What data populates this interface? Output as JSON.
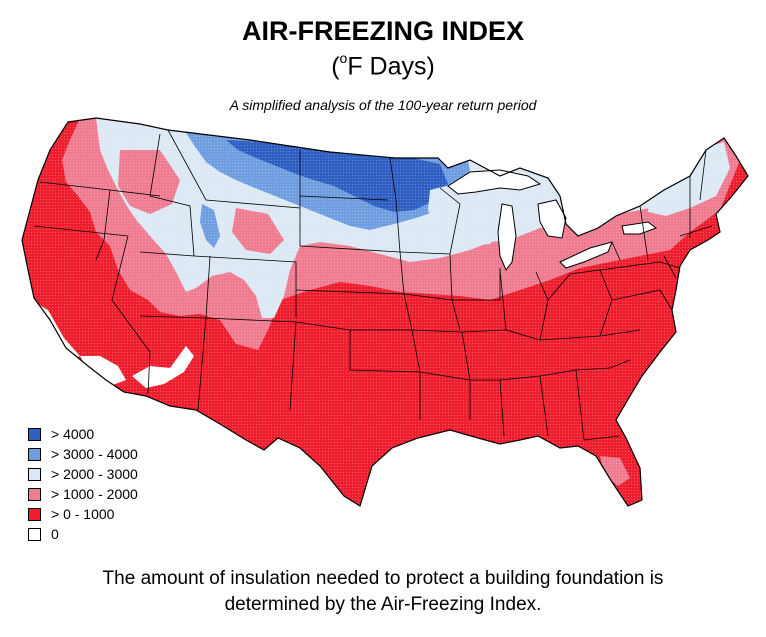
{
  "header": {
    "title": "AIR-FREEZING INDEX",
    "units_sup": "o",
    "units_text": "F Days)",
    "units_open": "(",
    "subtitle": "A simplified analysis of the 100-year return period"
  },
  "legend": {
    "items": [
      {
        "label": "> 4000",
        "color": "#2f5fc2"
      },
      {
        "label": "> 3000 - 4000",
        "color": "#6f9ee0"
      },
      {
        "label": "> 2000 - 3000",
        "color": "#dce8f4"
      },
      {
        "label": "> 1000 - 2000",
        "color": "#ef7c90"
      },
      {
        "label": "> 0 - 1000",
        "color": "#ee1e2e"
      },
      {
        "label": "0",
        "color": "#ffffff"
      }
    ]
  },
  "caption": {
    "line1": "The amount of insulation needed to protect a building foundation is",
    "line2": "determined by the Air-Freezing Index."
  },
  "colors": {
    "zone_4000": "#2f5fc2",
    "zone_3000": "#6f9ee0",
    "zone_2000": "#dce8f4",
    "zone_1000": "#ef7c90",
    "zone_0": "#ee1e2e",
    "zone_none": "#ffffff",
    "borders": "#000000"
  }
}
